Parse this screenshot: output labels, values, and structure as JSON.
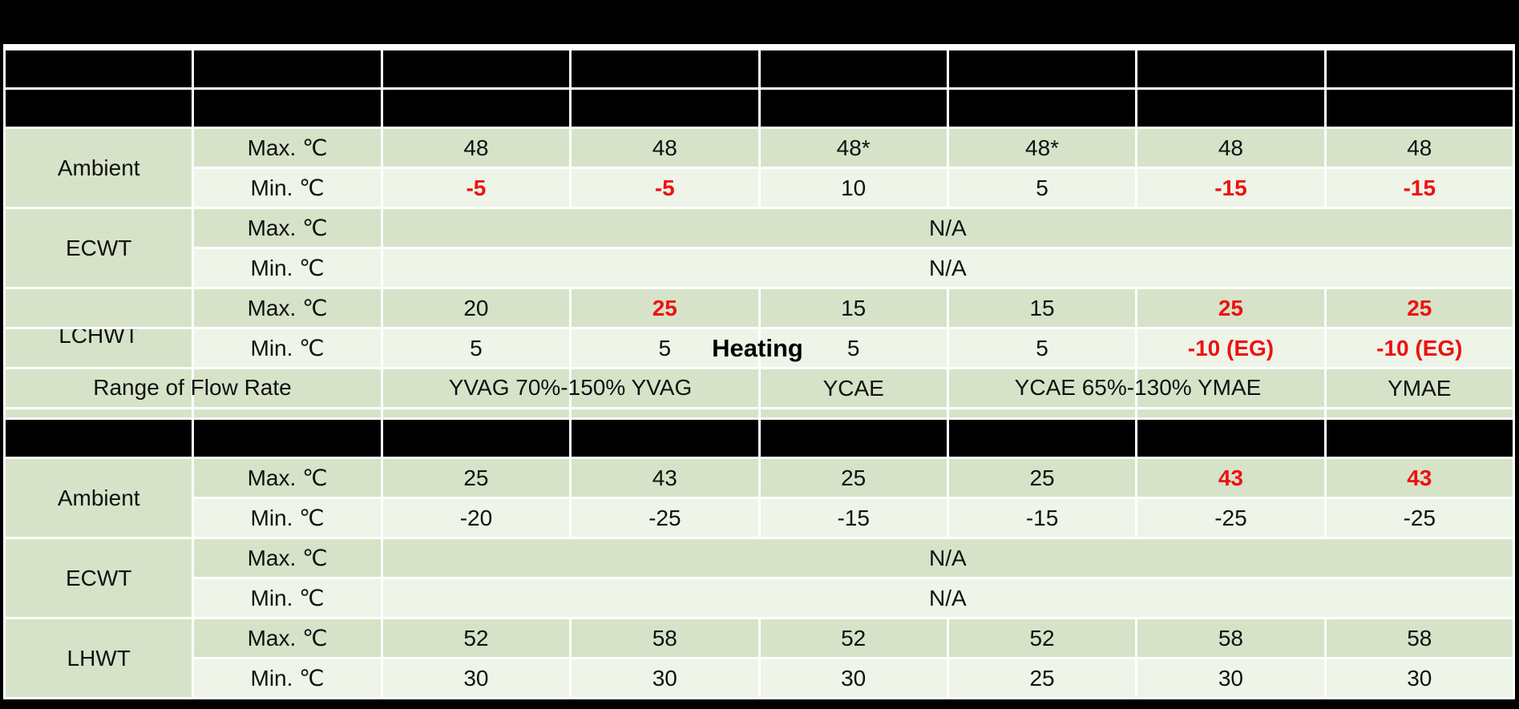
{
  "colors": {
    "cell_green": "#d6e3c8",
    "cell_light": "#eef4e8",
    "accent_red": "#ee1111",
    "frame_black": "#000000"
  },
  "overlays": {
    "lchwt_label": "LCHWT",
    "flow_rate_label": "Range of Flow Rate",
    "yvag_flow_range": "YVAG 70%-150% YVAG",
    "ycae_ymae_flow_range": "YCAE 65%-130% YMAE",
    "heating_label": "Heating"
  },
  "grid": {
    "rows": [
      {
        "kind": "header",
        "name": "model-header-row-1",
        "cells": [
          {
            "bg": "black"
          },
          {
            "bg": "black"
          },
          {
            "bg": "black"
          },
          {
            "bg": "black"
          },
          {
            "bg": "black"
          },
          {
            "bg": "black"
          },
          {
            "bg": "black"
          },
          {
            "bg": "black"
          }
        ]
      },
      {
        "kind": "header",
        "name": "model-header-row-2",
        "cells": [
          {
            "bg": "black"
          },
          {
            "bg": "black"
          },
          {
            "bg": "black"
          },
          {
            "bg": "black"
          },
          {
            "bg": "black"
          },
          {
            "bg": "black"
          },
          {
            "bg": "black"
          },
          {
            "bg": "black"
          }
        ]
      },
      {
        "kind": "data",
        "name": "cooling-ambient-max-row",
        "cells": [
          {
            "t": "Ambient",
            "bg": "green",
            "rowspan": 2,
            "n": "row-label-ambient"
          },
          {
            "t": "Max. ℃",
            "bg": "green",
            "n": "unit-label-max"
          },
          {
            "t": "48",
            "bg": "green"
          },
          {
            "t": "48",
            "bg": "green"
          },
          {
            "t": "48*",
            "bg": "green"
          },
          {
            "t": "48*",
            "bg": "green"
          },
          {
            "t": "48",
            "bg": "green"
          },
          {
            "t": "48",
            "bg": "green"
          }
        ]
      },
      {
        "kind": "data",
        "name": "cooling-ambient-min-row",
        "cells": [
          {
            "t": "Min. ℃",
            "bg": "light",
            "n": "unit-label-min"
          },
          {
            "t": "-5",
            "bg": "light",
            "red": true
          },
          {
            "t": "-5",
            "bg": "light",
            "red": true
          },
          {
            "t": "10",
            "bg": "light"
          },
          {
            "t": "5",
            "bg": "light"
          },
          {
            "t": "-15",
            "bg": "light",
            "red": true
          },
          {
            "t": "-15",
            "bg": "light",
            "red": true
          }
        ]
      },
      {
        "kind": "data",
        "name": "cooling-ecwt-max-row",
        "cells": [
          {
            "t": "ECWT",
            "bg": "green",
            "rowspan": 2,
            "n": "row-label-ecwt"
          },
          {
            "t": "Max. ℃",
            "bg": "green",
            "n": "unit-label-max"
          },
          {
            "t": "N/A",
            "bg": "green",
            "span": 6,
            "n": "na-merged-cell"
          }
        ]
      },
      {
        "kind": "data",
        "name": "cooling-ecwt-min-row",
        "cells": [
          {
            "t": "Min. ℃",
            "bg": "light",
            "n": "unit-label-min"
          },
          {
            "t": "N/A",
            "bg": "light",
            "span": 6,
            "n": "na-merged-cell"
          }
        ]
      },
      {
        "kind": "data",
        "name": "cooling-lchwt-max-row",
        "cells": [
          {
            "t": "",
            "bg": "green",
            "n": "row-label-lchwt-top"
          },
          {
            "t": "Max. ℃",
            "bg": "green",
            "n": "unit-label-max"
          },
          {
            "t": "20",
            "bg": "green"
          },
          {
            "t": "25",
            "bg": "green",
            "red": true
          },
          {
            "t": "15",
            "bg": "green"
          },
          {
            "t": "15",
            "bg": "green"
          },
          {
            "t": "25",
            "bg": "green",
            "red": true
          },
          {
            "t": "25",
            "bg": "green",
            "red": true
          }
        ]
      },
      {
        "kind": "data",
        "name": "cooling-lchwt-min-row",
        "cells": [
          {
            "t": "",
            "bg": "green",
            "n": "row-label-lchwt-bottom"
          },
          {
            "t": "Min. ℃",
            "bg": "light",
            "n": "unit-label-min"
          },
          {
            "t": "5",
            "bg": "light"
          },
          {
            "t": "5",
            "bg": "light"
          },
          {
            "t": "5",
            "bg": "light"
          },
          {
            "t": "5",
            "bg": "light"
          },
          {
            "t": "-10 (EG)",
            "bg": "light",
            "red": true
          },
          {
            "t": "-10 (EG)",
            "bg": "light",
            "red": true
          }
        ]
      },
      {
        "kind": "data",
        "name": "flow-rate-row",
        "cells": [
          {
            "t": "",
            "bg": "green"
          },
          {
            "t": "",
            "bg": "green"
          },
          {
            "t": "",
            "bg": "green"
          },
          {
            "t": "",
            "bg": "green"
          },
          {
            "t": "YCAE",
            "bg": "green",
            "n": "flow-rate-ycae"
          },
          {
            "t": "",
            "bg": "green"
          },
          {
            "t": "",
            "bg": "green"
          },
          {
            "t": "YMAE",
            "bg": "green",
            "n": "flow-rate-ymae"
          }
        ]
      },
      {
        "kind": "spacer",
        "name": "spacer-row",
        "cells": [
          {
            "bg": "green"
          },
          {
            "bg": "green"
          },
          {
            "bg": "green"
          },
          {
            "bg": "green"
          },
          {
            "bg": "green"
          },
          {
            "bg": "green"
          },
          {
            "bg": "green"
          },
          {
            "bg": "green"
          }
        ]
      },
      {
        "kind": "header",
        "name": "heating-header-row",
        "cells": [
          {
            "bg": "black"
          },
          {
            "bg": "black"
          },
          {
            "bg": "black"
          },
          {
            "bg": "black"
          },
          {
            "bg": "black"
          },
          {
            "bg": "black"
          },
          {
            "bg": "black"
          },
          {
            "bg": "black"
          }
        ]
      },
      {
        "kind": "data",
        "name": "heating-ambient-max-row",
        "cells": [
          {
            "t": "Ambient",
            "bg": "green",
            "rowspan": 2,
            "n": "row-label-ambient"
          },
          {
            "t": "Max. ℃",
            "bg": "green",
            "n": "unit-label-max"
          },
          {
            "t": "25",
            "bg": "green"
          },
          {
            "t": "43",
            "bg": "green"
          },
          {
            "t": "25",
            "bg": "green"
          },
          {
            "t": "25",
            "bg": "green"
          },
          {
            "t": "43",
            "bg": "green",
            "red": true
          },
          {
            "t": "43",
            "bg": "green",
            "red": true
          }
        ]
      },
      {
        "kind": "data",
        "name": "heating-ambient-min-row",
        "cells": [
          {
            "t": "Min. ℃",
            "bg": "light",
            "n": "unit-label-min"
          },
          {
            "t": "-20",
            "bg": "light"
          },
          {
            "t": "-25",
            "bg": "light"
          },
          {
            "t": "-15",
            "bg": "light"
          },
          {
            "t": "-15",
            "bg": "light"
          },
          {
            "t": "-25",
            "bg": "light"
          },
          {
            "t": "-25",
            "bg": "light"
          }
        ]
      },
      {
        "kind": "data",
        "name": "heating-ecwt-max-row",
        "cells": [
          {
            "t": "ECWT",
            "bg": "green",
            "rowspan": 2,
            "n": "row-label-ecwt"
          },
          {
            "t": "Max. ℃",
            "bg": "green",
            "n": "unit-label-max"
          },
          {
            "t": "N/A",
            "bg": "green",
            "span": 6,
            "n": "na-merged-cell"
          }
        ]
      },
      {
        "kind": "data",
        "name": "heating-ecwt-min-row",
        "cells": [
          {
            "t": "Min. ℃",
            "bg": "light",
            "n": "unit-label-min"
          },
          {
            "t": "N/A",
            "bg": "light",
            "span": 6,
            "n": "na-merged-cell"
          }
        ]
      },
      {
        "kind": "data",
        "name": "heating-lhwt-max-row",
        "cells": [
          {
            "t": "LHWT",
            "bg": "green",
            "rowspan": 2,
            "n": "row-label-lhwt"
          },
          {
            "t": "Max. ℃",
            "bg": "green",
            "n": "unit-label-max"
          },
          {
            "t": "52",
            "bg": "green"
          },
          {
            "t": "58",
            "bg": "green"
          },
          {
            "t": "52",
            "bg": "green"
          },
          {
            "t": "52",
            "bg": "green"
          },
          {
            "t": "58",
            "bg": "green"
          },
          {
            "t": "58",
            "bg": "green"
          }
        ]
      },
      {
        "kind": "data",
        "name": "heating-lhwt-min-row",
        "cells": [
          {
            "t": "Min. ℃",
            "bg": "light",
            "n": "unit-label-min"
          },
          {
            "t": "30",
            "bg": "light"
          },
          {
            "t": "30",
            "bg": "light"
          },
          {
            "t": "30",
            "bg": "light"
          },
          {
            "t": "25",
            "bg": "light"
          },
          {
            "t": "30",
            "bg": "light"
          },
          {
            "t": "30",
            "bg": "light"
          }
        ]
      }
    ]
  }
}
